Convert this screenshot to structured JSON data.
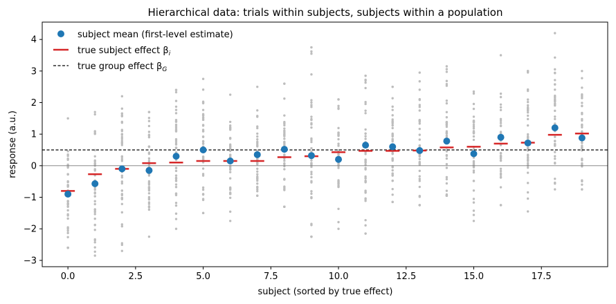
{
  "chart_data": {
    "type": "scatter",
    "title": "Hierarchical data: trials within subjects, subjects within a population",
    "xlabel": "subject (sorted by true effect)",
    "ylabel": "response (a.u.)",
    "xlim": [
      -0.95,
      19.95
    ],
    "ylim": [
      -3.2,
      4.55
    ],
    "xticks": [
      0.0,
      2.5,
      5.0,
      7.5,
      10.0,
      12.5,
      15.0,
      17.5
    ],
    "xtick_labels": [
      "0.0",
      "2.5",
      "5.0",
      "7.5",
      "10.0",
      "12.5",
      "15.0",
      "17.5"
    ],
    "yticks": [
      -3,
      -2,
      -1,
      0,
      1,
      2,
      3,
      4
    ],
    "ytick_labels": [
      "−3",
      "−2",
      "−1",
      "0",
      "1",
      "2",
      "3",
      "4"
    ],
    "grid": false,
    "legend_position": "upper-left",
    "group_effect": 0.5,
    "zero_line": 0,
    "colors": {
      "subject_mean": "#1f77b4",
      "true_effect": "#d62728",
      "group_line": "#000000",
      "trials": "#bdbdbd",
      "zero_line": "#777777"
    },
    "legend": {
      "subject_mean": "subject mean (first-level estimate)",
      "true_effect": "true subject effect β",
      "true_effect_sub": "i",
      "group_effect": "true group effect β",
      "group_effect_sub": "G"
    },
    "subjects": [
      0,
      1,
      2,
      3,
      4,
      5,
      6,
      7,
      8,
      9,
      10,
      11,
      12,
      13,
      14,
      15,
      16,
      17,
      18,
      19
    ],
    "true_effects": [
      -0.8,
      -0.27,
      -0.1,
      0.08,
      0.1,
      0.15,
      0.15,
      0.15,
      0.27,
      0.3,
      0.43,
      0.47,
      0.47,
      0.48,
      0.58,
      0.6,
      0.7,
      0.73,
      0.98,
      1.02
    ],
    "subject_means": [
      -0.9,
      -0.57,
      -0.1,
      -0.15,
      0.3,
      0.5,
      0.15,
      0.35,
      0.52,
      0.32,
      0.2,
      0.65,
      0.6,
      0.48,
      0.78,
      0.38,
      0.9,
      0.72,
      1.2,
      0.88
    ],
    "trial_spread": [
      {
        "min": -2.6,
        "max": 1.5
      },
      {
        "min": -2.85,
        "max": 1.7
      },
      {
        "min": -2.7,
        "max": 2.2
      },
      {
        "min": -2.25,
        "max": 1.7
      },
      {
        "min": -2.0,
        "max": 2.4
      },
      {
        "min": -1.5,
        "max": 2.75
      },
      {
        "min": -1.75,
        "max": 2.25
      },
      {
        "min": -0.95,
        "max": 2.5
      },
      {
        "min": -1.3,
        "max": 2.6
      },
      {
        "min": -2.25,
        "max": 3.75
      },
      {
        "min": -2.0,
        "max": 2.1
      },
      {
        "min": -2.15,
        "max": 2.85
      },
      {
        "min": -1.15,
        "max": 2.5
      },
      {
        "min": -1.25,
        "max": 2.95
      },
      {
        "min": -0.95,
        "max": 3.15
      },
      {
        "min": -1.75,
        "max": 2.35
      },
      {
        "min": -1.25,
        "max": 3.5
      },
      {
        "min": -1.45,
        "max": 3.0
      },
      {
        "min": -0.75,
        "max": 4.2
      },
      {
        "min": -0.75,
        "max": 3.0
      }
    ]
  }
}
